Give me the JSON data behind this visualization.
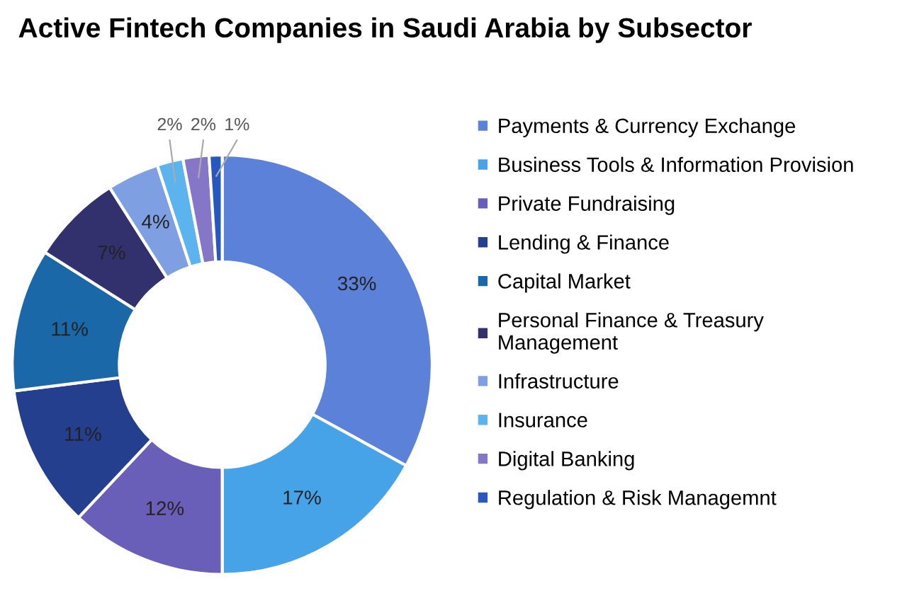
{
  "chart_data": {
    "type": "donut",
    "title": "Active Fintech Companies in Saudi Arabia by Subsector",
    "categories": [
      "Payments & Currency Exchange",
      "Business Tools & Information Provision",
      "Private Fundraising",
      "Lending & Finance",
      "Capital Market",
      "Personal Finance & Treasury\nManagement",
      "Infrastructure",
      "Insurance",
      "Digital Banking",
      "Regulation & Risk Managemnt"
    ],
    "values": [
      33,
      17,
      12,
      11,
      11,
      7,
      4,
      2,
      2,
      1
    ],
    "value_labels": [
      "33%",
      "17%",
      "12%",
      "11%",
      "11%",
      "7%",
      "4%",
      "2%",
      "2%",
      "1%"
    ],
    "colors": [
      "#5b82d8",
      "#46a3e8",
      "#6a5fb8",
      "#233f8e",
      "#1a68a8",
      "#33306e",
      "#7f9fe3",
      "#5cb4ee",
      "#8576c8",
      "#2857c0"
    ],
    "legend": "right"
  }
}
